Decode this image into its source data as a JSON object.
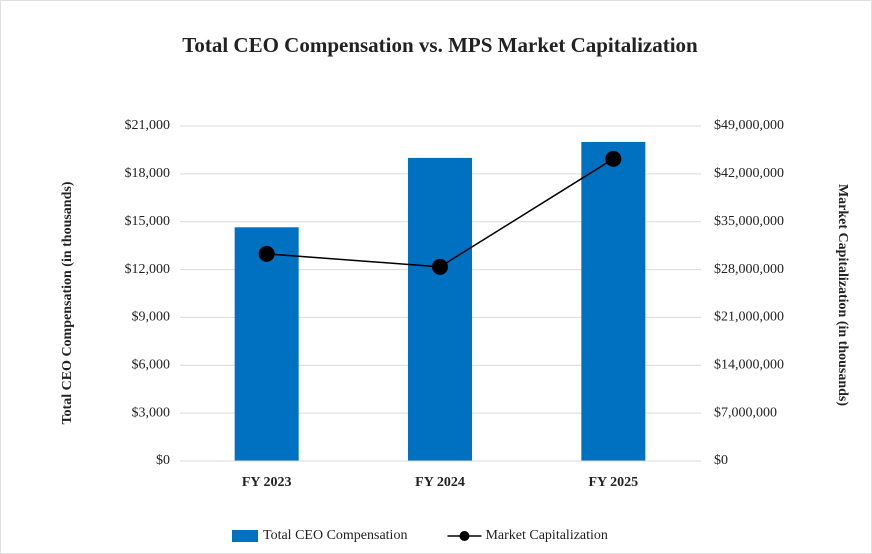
{
  "chart_data": {
    "type": "bar-line",
    "title": "Total CEO Compensation vs. MPS Market Capitalization",
    "y_label": "Total CEO Compensation (in thousands)",
    "y2_label": "Market Capitalization (in thousands)",
    "categories": [
      "FY 2023",
      "FY 2024",
      "FY 2025"
    ],
    "series": [
      {
        "name": "Total CEO Compensation",
        "type": "bar",
        "color": "#0070c0",
        "axis": "y",
        "values": [
          14650,
          19000,
          20000
        ]
      },
      {
        "name": "Market Capitalization",
        "type": "line",
        "color": "#000000",
        "axis": "y2",
        "values": [
          30300000,
          28400000,
          44200000
        ]
      }
    ],
    "ylim": [
      0,
      21000
    ],
    "yticks": [
      {
        "value": 0,
        "label": "$0"
      },
      {
        "value": 3000,
        "label": "$3,000"
      },
      {
        "value": 6000,
        "label": "$6,000"
      },
      {
        "value": 9000,
        "label": "$9,000"
      },
      {
        "value": 12000,
        "label": "$12,000"
      },
      {
        "value": 15000,
        "label": "$15,000"
      },
      {
        "value": 18000,
        "label": "$18,000"
      },
      {
        "value": 21000,
        "label": "$21,000"
      }
    ],
    "y2lim": [
      0,
      49000000
    ],
    "y2ticks": [
      {
        "value": 0,
        "label": "$0"
      },
      {
        "value": 7000000,
        "label": "$7,000,000"
      },
      {
        "value": 14000000,
        "label": "$14,000,000"
      },
      {
        "value": 21000000,
        "label": "$21,000,000"
      },
      {
        "value": 28000000,
        "label": "$28,000,000"
      },
      {
        "value": 35000000,
        "label": "$35,000,000"
      },
      {
        "value": 42000000,
        "label": "$42,000,000"
      },
      {
        "value": 49000000,
        "label": "$49,000,000"
      }
    ],
    "grid": true,
    "legend": "bottom"
  }
}
